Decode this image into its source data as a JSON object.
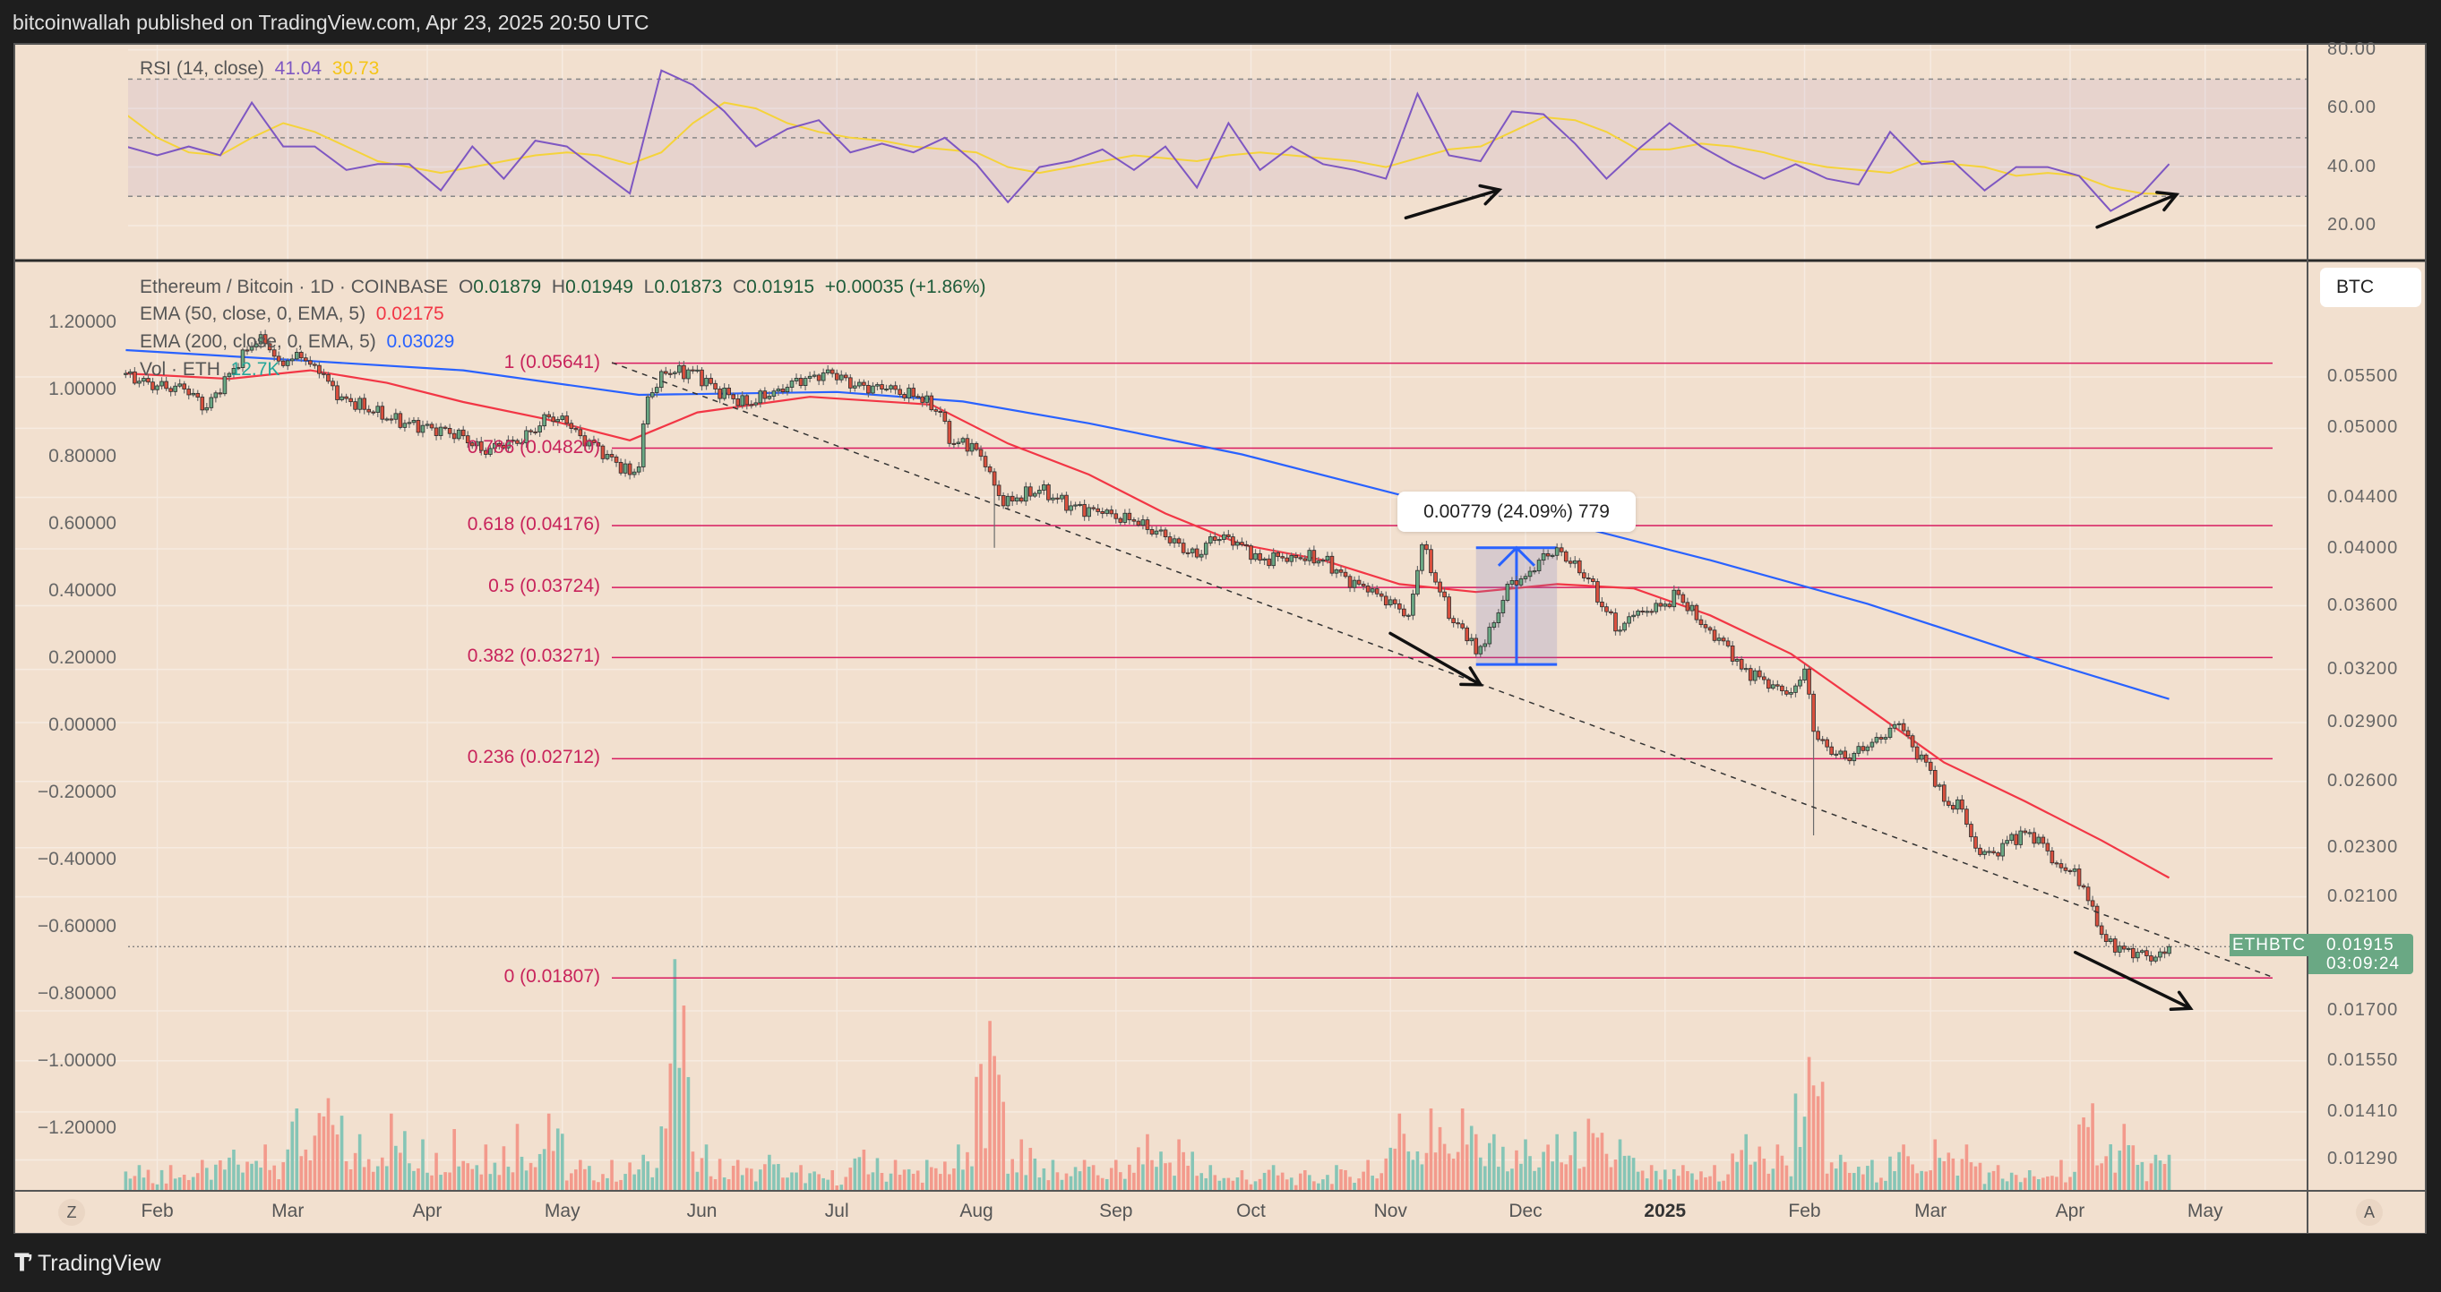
{
  "header": {
    "title": "bitcoinwallah published on TradingView.com, Apr 23, 2025 20:50 UTC"
  },
  "footer": {
    "logo_text": "TradingView",
    "logo_mark": "17"
  },
  "rsi_legend": {
    "label": "RSI (14, close)",
    "rsi_value": "41.04",
    "ma_value": "30.73",
    "rsi_color": "#7e57c2",
    "ma_color": "#f5d33a"
  },
  "legend": {
    "symbol": "Ethereum / Bitcoin · 1D · COINBASE",
    "o_label": "O",
    "o_value": "0.01879",
    "h_label": "H",
    "h_value": "0.01949",
    "l_label": "L",
    "l_value": "0.01873",
    "c_label": "C",
    "c_value": "0.01915",
    "change": "+0.00035 (+1.86%)",
    "ema50_label": "EMA (50, close, 0, EMA, 5)",
    "ema50_value": "0.02175",
    "ema50_color": "#f23645",
    "ema200_label": "EMA (200, close, 0, EMA, 5)",
    "ema200_value": "0.03029",
    "ema200_color": "#2962ff",
    "vol_label": "Vol · ETH",
    "vol_value": "12.7K"
  },
  "price_axis": {
    "currency_button": "BTC",
    "symbol_tag": "ETHBTC",
    "last_price": "0.01915",
    "countdown": "03:09:24",
    "up_color": "#6aa884",
    "down_color": "#d9503e"
  },
  "measure": {
    "text": "0.00779 (24.09%) 779"
  },
  "time_axis": {
    "left_button": "Z",
    "right_button": "A"
  },
  "chart_data": {
    "type": "candlestick",
    "symbol": "ETHBTC",
    "scale": "log",
    "grid": true,
    "right_axis_ticks": [
      "0.05500",
      "0.05000",
      "0.04400",
      "0.04000",
      "0.03600",
      "0.03200",
      "0.02900",
      "0.02600",
      "0.02300",
      "0.02100",
      "0.01700",
      "0.01550",
      "0.01410",
      "0.01290"
    ],
    "left_axis_ticks": [
      "1.20000",
      "1.00000",
      "0.80000",
      "0.60000",
      "0.40000",
      "0.20000",
      "0.00000",
      "−0.20000",
      "−0.40000",
      "−0.60000",
      "−0.80000",
      "−1.00000",
      "−1.20000"
    ],
    "rsi_axis_ticks": [
      "80.00",
      "60.00",
      "40.00",
      "20.00"
    ],
    "time_ticks": [
      {
        "label": "Feb",
        "date": "2024-02-01"
      },
      {
        "label": "Mar",
        "date": "2024-03-01"
      },
      {
        "label": "Apr",
        "date": "2024-04-01"
      },
      {
        "label": "May",
        "date": "2024-05-01"
      },
      {
        "label": "Jun",
        "date": "2024-06-01"
      },
      {
        "label": "Jul",
        "date": "2024-07-01"
      },
      {
        "label": "Aug",
        "date": "2024-08-01"
      },
      {
        "label": "Sep",
        "date": "2024-09-01"
      },
      {
        "label": "Oct",
        "date": "2024-10-01"
      },
      {
        "label": "Nov",
        "date": "2024-11-01"
      },
      {
        "label": "Dec",
        "date": "2024-12-01"
      },
      {
        "label": "2025",
        "date": "2025-01-01",
        "bold": true
      },
      {
        "label": "Feb",
        "date": "2025-02-01"
      },
      {
        "label": "Mar",
        "date": "2025-03-01"
      },
      {
        "label": "Apr",
        "date": "2025-04-01"
      },
      {
        "label": "May",
        "date": "2025-05-01"
      }
    ],
    "fib_levels": [
      {
        "label": "1 (0.05641)",
        "price": 0.05641
      },
      {
        "label": "0.786 (0.04820)",
        "price": 0.0482
      },
      {
        "label": "0.618 (0.04176)",
        "price": 0.04176
      },
      {
        "label": "0.5 (0.03724)",
        "price": 0.03724
      },
      {
        "label": "0.382 (0.03271)",
        "price": 0.03271
      },
      {
        "label": "0.236 (0.02712)",
        "price": 0.02712
      },
      {
        "label": "0 (0.01807)",
        "price": 0.01807
      }
    ],
    "fib_color": "#d81b60",
    "close_points": [
      [
        "2024-01-25",
        0.05535
      ],
      [
        "2024-01-28",
        0.05456
      ],
      [
        "2024-02-01",
        0.05409
      ],
      [
        "2024-02-07",
        0.05378
      ],
      [
        "2024-02-12",
        0.05195
      ],
      [
        "2024-02-17",
        0.05535
      ],
      [
        "2024-02-21",
        0.05779
      ],
      [
        "2024-02-24",
        0.05948
      ],
      [
        "2024-02-28",
        0.05664
      ],
      [
        "2024-03-04",
        0.05697
      ],
      [
        "2024-03-08",
        0.05535
      ],
      [
        "2024-03-13",
        0.05301
      ],
      [
        "2024-03-20",
        0.0515
      ],
      [
        "2024-03-27",
        0.05047
      ],
      [
        "2024-04-02",
        0.05004
      ],
      [
        "2024-04-09",
        0.04932
      ],
      [
        "2024-04-14",
        0.04765
      ],
      [
        "2024-04-16",
        0.04862
      ],
      [
        "2024-04-21",
        0.04862
      ],
      [
        "2024-04-28",
        0.05106
      ],
      [
        "2024-05-02",
        0.05047
      ],
      [
        "2024-05-05",
        0.04932
      ],
      [
        "2024-05-11",
        0.04765
      ],
      [
        "2024-05-16",
        0.0459
      ],
      [
        "2024-05-18",
        0.04656
      ],
      [
        "2024-05-20",
        0.05301
      ],
      [
        "2024-05-24",
        0.05535
      ],
      [
        "2024-05-30",
        0.05567
      ],
      [
        "2024-06-04",
        0.05378
      ],
      [
        "2024-06-11",
        0.05225
      ],
      [
        "2024-06-18",
        0.05378
      ],
      [
        "2024-06-25",
        0.05506
      ],
      [
        "2024-06-30",
        0.05535
      ],
      [
        "2024-07-05",
        0.05409
      ],
      [
        "2024-07-12",
        0.05378
      ],
      [
        "2024-07-19",
        0.05301
      ],
      [
        "2024-07-24",
        0.0515
      ],
      [
        "2024-07-26",
        0.04862
      ],
      [
        "2024-07-31",
        0.04862
      ],
      [
        "2024-08-03",
        0.04656
      ],
      [
        "2024-08-07",
        0.04332
      ],
      [
        "2024-08-10",
        0.04396
      ],
      [
        "2024-08-15",
        0.04459
      ],
      [
        "2024-08-22",
        0.04332
      ],
      [
        "2024-08-29",
        0.04271
      ],
      [
        "2024-09-05",
        0.0421
      ],
      [
        "2024-09-12",
        0.0409
      ],
      [
        "2024-09-19",
        0.0394
      ],
      [
        "2024-09-22",
        0.0409
      ],
      [
        "2024-09-26",
        0.0409
      ],
      [
        "2024-09-29",
        0.04031
      ],
      [
        "2024-10-03",
        0.03917
      ],
      [
        "2024-10-10",
        0.03951
      ],
      [
        "2024-10-17",
        0.03917
      ],
      [
        "2024-10-22",
        0.03801
      ],
      [
        "2024-10-27",
        0.03693
      ],
      [
        "2024-11-01",
        0.0364
      ],
      [
        "2024-11-05",
        0.03537
      ],
      [
        "2024-11-08",
        0.04031
      ],
      [
        "2024-11-12",
        0.03693
      ],
      [
        "2024-11-15",
        0.03488
      ],
      [
        "2024-11-19",
        0.03389
      ],
      [
        "2024-11-20",
        0.03293
      ],
      [
        "2024-11-24",
        0.03488
      ],
      [
        "2024-11-27",
        0.03747
      ],
      [
        "2024-12-01",
        0.03801
      ],
      [
        "2024-12-04",
        0.03917
      ],
      [
        "2024-12-08",
        0.04008
      ],
      [
        "2024-12-11",
        0.03894
      ],
      [
        "2024-12-15",
        0.03784
      ],
      [
        "2024-12-18",
        0.03593
      ],
      [
        "2024-12-22",
        0.03441
      ],
      [
        "2024-12-25",
        0.03537
      ],
      [
        "2024-12-29",
        0.0356
      ],
      [
        "2025-01-01",
        0.03611
      ],
      [
        "2025-01-04",
        0.03675
      ],
      [
        "2025-01-08",
        0.03508
      ],
      [
        "2025-01-11",
        0.03441
      ],
      [
        "2025-01-15",
        0.03342
      ],
      [
        "2025-01-18",
        0.03202
      ],
      [
        "2025-01-22",
        0.03156
      ],
      [
        "2025-01-25",
        0.0311
      ],
      [
        "2025-01-29",
        0.03066
      ],
      [
        "2025-02-01",
        0.03202
      ],
      [
        "2025-02-03",
        0.02853
      ],
      [
        "2025-02-06",
        0.02772
      ],
      [
        "2025-02-10",
        0.02716
      ],
      [
        "2025-02-15",
        0.02772
      ],
      [
        "2025-02-18",
        0.02812
      ],
      [
        "2025-02-22",
        0.02894
      ],
      [
        "2025-02-25",
        0.02772
      ],
      [
        "2025-03-01",
        0.02654
      ],
      [
        "2025-03-04",
        0.02506
      ],
      [
        "2025-03-08",
        0.0247
      ],
      [
        "2025-03-11",
        0.02298
      ],
      [
        "2025-03-15",
        0.02278
      ],
      [
        "2025-03-18",
        0.02331
      ],
      [
        "2025-03-22",
        0.02365
      ],
      [
        "2025-03-25",
        0.02345
      ],
      [
        "2025-03-29",
        0.02233
      ],
      [
        "2025-04-01",
        0.02201
      ],
      [
        "2025-04-04",
        0.02138
      ],
      [
        "2025-04-07",
        0.0199
      ],
      [
        "2025-04-09",
        0.01933
      ],
      [
        "2025-04-13",
        0.01906
      ],
      [
        "2025-04-16",
        0.01895
      ],
      [
        "2025-04-20",
        0.01878
      ],
      [
        "2025-04-23",
        0.01915
      ]
    ],
    "notable_lows": [
      [
        "2024-08-05",
        0.04008
      ],
      [
        "2025-02-03",
        0.02353
      ]
    ],
    "ema50": [
      [
        "2024-01-25",
        0.05535
      ],
      [
        "2024-02-17",
        0.0548
      ],
      [
        "2024-03-06",
        0.05567
      ],
      [
        "2024-03-23",
        0.0544
      ],
      [
        "2024-04-09",
        0.0525
      ],
      [
        "2024-04-27",
        0.0509
      ],
      [
        "2024-05-16",
        0.0489
      ],
      [
        "2024-05-31",
        0.0515
      ],
      [
        "2024-06-25",
        0.05301
      ],
      [
        "2024-07-22",
        0.05225
      ],
      [
        "2024-08-08",
        0.04862
      ],
      [
        "2024-08-26",
        0.0459
      ],
      [
        "2024-09-12",
        0.04271
      ],
      [
        "2024-09-29",
        0.04031
      ],
      [
        "2024-10-17",
        0.03917
      ],
      [
        "2024-11-03",
        0.03747
      ],
      [
        "2024-11-20",
        0.03693
      ],
      [
        "2024-12-08",
        0.03747
      ],
      [
        "2024-12-25",
        0.03718
      ],
      [
        "2025-01-11",
        0.03537
      ],
      [
        "2025-01-29",
        0.03293
      ],
      [
        "2025-02-15",
        0.02979
      ],
      [
        "2025-03-04",
        0.02693
      ],
      [
        "2025-03-22",
        0.02506
      ],
      [
        "2025-04-08",
        0.02331
      ],
      [
        "2025-04-23",
        0.02175
      ]
    ],
    "ema200": [
      [
        "2024-01-25",
        0.0578
      ],
      [
        "2024-03-06",
        0.05664
      ],
      [
        "2024-04-09",
        0.05567
      ],
      [
        "2024-05-18",
        0.0532
      ],
      [
        "2024-07-01",
        0.05348
      ],
      [
        "2024-07-29",
        0.05255
      ],
      [
        "2024-08-26",
        0.05047
      ],
      [
        "2024-09-29",
        0.04765
      ],
      [
        "2024-11-03",
        0.04421
      ],
      [
        "2024-12-08",
        0.0421
      ],
      [
        "2025-01-11",
        0.03917
      ],
      [
        "2025-02-15",
        0.03613
      ],
      [
        "2025-03-22",
        0.03285
      ],
      [
        "2025-04-23",
        0.03029
      ]
    ],
    "weekly_start": "2024-01-25",
    "last_date": "2025-04-23",
    "rsi": [
      47,
      44,
      47,
      44,
      62,
      47,
      47,
      39,
      41,
      41,
      32,
      47,
      36,
      49,
      47,
      39,
      31,
      73,
      68,
      59,
      47,
      53,
      56,
      45,
      48,
      45,
      50,
      41,
      28,
      40,
      42,
      46,
      39,
      47,
      33,
      55,
      39,
      47,
      41,
      39,
      36,
      65,
      44,
      42,
      59,
      58,
      48,
      36,
      46,
      55,
      47,
      41,
      36,
      41,
      36,
      34,
      52,
      41,
      42,
      32,
      40,
      40,
      37,
      25,
      31,
      41.04
    ],
    "rsi_ma": [
      58,
      50,
      45,
      44,
      50,
      55,
      52,
      47,
      42,
      40,
      38,
      40,
      42,
      44,
      45,
      44,
      41,
      45,
      55,
      62,
      60,
      55,
      52,
      50,
      49,
      47,
      46,
      45,
      40,
      38,
      40,
      42,
      44,
      43,
      42,
      44,
      45,
      44,
      43,
      42,
      40,
      43,
      46,
      47,
      52,
      57,
      56,
      52,
      46,
      46,
      48,
      47,
      45,
      42,
      40,
      39,
      38,
      42,
      41,
      40,
      37,
      38,
      37,
      33,
      31,
      30.73
    ],
    "rsi_bands": {
      "upper": 70,
      "middle": 50,
      "lower": 30
    },
    "volume_k_eth_weekly_peak": [
      5,
      5,
      6,
      8,
      9,
      16,
      18,
      11,
      15,
      10,
      12,
      9,
      13,
      15,
      6,
      6,
      7,
      45,
      9,
      6,
      7,
      5,
      4,
      8,
      6,
      6,
      9,
      33,
      10,
      6,
      6,
      6,
      11,
      10,
      5,
      4,
      5,
      4,
      5,
      6,
      15,
      16,
      16,
      11,
      10,
      11,
      14,
      10,
      5,
      5,
      5,
      11,
      9,
      26,
      7,
      6,
      9,
      10,
      9,
      5,
      4,
      6,
      17,
      13,
      7,
      12.7
    ]
  }
}
